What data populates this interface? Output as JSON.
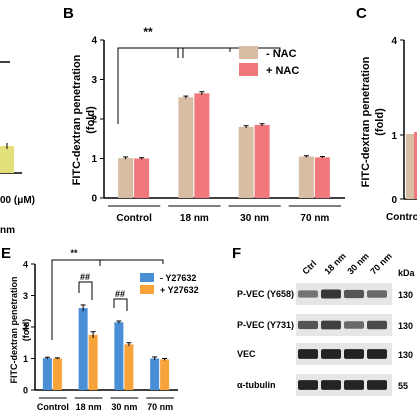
{
  "colors": {
    "nac_minus": "#d7bda3",
    "nac_plus": "#f0787b",
    "y_minus": "#4a8ed6",
    "y_plus": "#f7a33a",
    "left_bar": "#e3e07a",
    "axis": "#000000"
  },
  "fragments": {
    "left_unit": "00 (μM)",
    "left_bottom": "nm",
    "c_tick_4": "4",
    "c_tick_1": "1",
    "c_tick_0": "0",
    "c_ylabel": "FITC-dextran penetration",
    "c_ylabel2": "(fold)",
    "c_xtick": "Contro"
  },
  "panel_labels": {
    "b": "B",
    "c": "C",
    "e": "E",
    "f": "F"
  },
  "chart_data": [
    {
      "id": "B",
      "type": "bar",
      "title": "",
      "ylabel": "FITC-dextran penetration",
      "ylabel2": "(fold)",
      "ylim": [
        0,
        4
      ],
      "yticks": [
        0,
        1,
        2,
        3,
        4
      ],
      "categories": [
        "Control",
        "18 nm",
        "30 nm",
        "70 nm"
      ],
      "series": [
        {
          "name": "- NAC",
          "values": [
            1.01,
            2.55,
            1.8,
            1.05
          ],
          "errors": [
            0.03,
            0.03,
            0.03,
            0.02
          ],
          "color": "#d7bda3"
        },
        {
          "name": "+ NAC",
          "values": [
            1.0,
            2.65,
            1.85,
            1.03
          ],
          "errors": [
            0.02,
            0.04,
            0.03,
            0.02
          ],
          "color": "#f0787b"
        }
      ],
      "annotations": [
        "**"
      ],
      "legend": "top-right"
    },
    {
      "id": "E",
      "type": "bar",
      "title": "",
      "ylabel": "FITC-dextran penetration",
      "ylabel2": "(fold)",
      "ylim": [
        0,
        4
      ],
      "yticks": [
        0,
        1,
        2,
        3,
        4
      ],
      "categories": [
        "Control",
        "18 nm",
        "30 nm",
        "70 nm"
      ],
      "series": [
        {
          "name": "- Y27632",
          "values": [
            1.01,
            2.6,
            2.15,
            1.0
          ],
          "errors": [
            0.03,
            0.1,
            0.04,
            0.05
          ],
          "color": "#4a8ed6"
        },
        {
          "name": "+ Y27632",
          "values": [
            1.0,
            1.75,
            1.45,
            0.97
          ],
          "errors": [
            0.02,
            0.1,
            0.05,
            0.03
          ],
          "color": "#f7a33a"
        }
      ],
      "annotations": [
        "**",
        "##",
        "##"
      ],
      "legend": "top-right"
    }
  ],
  "blot": {
    "lanes": [
      "Ctrl",
      "18 nm",
      "30 nm",
      "70 nm"
    ],
    "kda_header": "kDa",
    "rows": [
      {
        "label": "P-VEC (Y658)",
        "kda": "130",
        "intensity": [
          0.55,
          0.85,
          0.7,
          0.6
        ]
      },
      {
        "label": "P-VEC (Y731)",
        "kda": "130",
        "intensity": [
          0.7,
          0.8,
          0.6,
          0.75
        ]
      },
      {
        "label": "VEC",
        "kda": "130",
        "intensity": [
          0.95,
          0.95,
          0.95,
          0.95
        ]
      },
      {
        "label": "α-tubulin",
        "kda": "55",
        "intensity": [
          0.95,
          0.95,
          0.95,
          0.95
        ]
      }
    ]
  }
}
